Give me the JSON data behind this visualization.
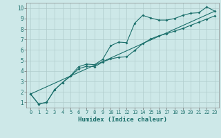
{
  "xlabel": "Humidex (Indice chaleur)",
  "bg_color": "#cde8e8",
  "grid_color": "#b0cccc",
  "line_color": "#1a6e6a",
  "xlim": [
    -0.5,
    23.5
  ],
  "ylim": [
    0.5,
    10.5
  ],
  "xticks": [
    0,
    1,
    2,
    3,
    4,
    5,
    6,
    7,
    8,
    9,
    10,
    11,
    12,
    13,
    14,
    15,
    16,
    17,
    18,
    19,
    20,
    21,
    22,
    23
  ],
  "yticks": [
    1,
    2,
    3,
    4,
    5,
    6,
    7,
    8,
    9,
    10
  ],
  "line1_x": [
    0,
    1,
    2,
    3,
    4,
    5,
    6,
    7,
    8,
    9,
    10,
    11,
    12,
    13,
    14,
    15,
    16,
    17,
    18,
    19,
    20,
    21,
    22,
    23
  ],
  "line1_y": [
    1.8,
    0.85,
    1.0,
    2.2,
    2.9,
    3.55,
    4.4,
    4.65,
    4.6,
    5.1,
    6.4,
    6.75,
    6.7,
    8.55,
    9.3,
    9.05,
    8.85,
    8.85,
    9.0,
    9.3,
    9.5,
    9.55,
    10.1,
    9.7
  ],
  "line2_x": [
    0,
    1,
    2,
    3,
    4,
    5,
    6,
    7,
    8,
    9,
    10,
    11,
    12,
    13,
    14,
    15,
    16,
    17,
    18,
    19,
    20,
    21,
    22,
    23
  ],
  "line2_y": [
    1.8,
    0.85,
    1.0,
    2.2,
    2.9,
    3.5,
    4.2,
    4.45,
    4.4,
    4.85,
    5.15,
    5.3,
    5.35,
    5.95,
    6.6,
    7.05,
    7.35,
    7.55,
    7.8,
    8.05,
    8.35,
    8.65,
    8.95,
    9.25
  ],
  "line3_x": [
    0,
    23
  ],
  "line3_y": [
    1.8,
    9.7
  ]
}
